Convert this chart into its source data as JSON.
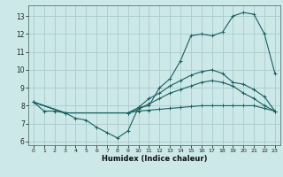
{
  "xlabel": "Humidex (Indice chaleur)",
  "bg_color": "#cce8e8",
  "grid_color": "#aacccc",
  "line_color": "#1a6060",
  "xlim": [
    -0.5,
    23.5
  ],
  "ylim": [
    5.8,
    13.6
  ],
  "xticks": [
    0,
    1,
    2,
    3,
    4,
    5,
    6,
    7,
    8,
    9,
    10,
    11,
    12,
    13,
    14,
    15,
    16,
    17,
    18,
    19,
    20,
    21,
    22,
    23
  ],
  "yticks": [
    6,
    7,
    8,
    9,
    10,
    11,
    12,
    13
  ],
  "series": [
    {
      "x": [
        0,
        1,
        2,
        3,
        4,
        5,
        6,
        7,
        8,
        9,
        10,
        11,
        12,
        13,
        14,
        15,
        16,
        17,
        18,
        19,
        20,
        21,
        22,
        23
      ],
      "y": [
        8.2,
        7.7,
        7.7,
        7.6,
        7.3,
        7.2,
        6.8,
        6.5,
        6.2,
        6.6,
        7.9,
        8.0,
        9.0,
        9.5,
        10.5,
        11.9,
        12.0,
        11.9,
        12.1,
        13.0,
        13.2,
        13.1,
        12.0,
        9.8
      ]
    },
    {
      "x": [
        0,
        3,
        9,
        10,
        11,
        12,
        13,
        14,
        15,
        16,
        17,
        18,
        19,
        20,
        21,
        22,
        23
      ],
      "y": [
        8.2,
        7.6,
        7.6,
        7.9,
        8.4,
        8.7,
        9.1,
        9.4,
        9.7,
        9.9,
        10.0,
        9.8,
        9.3,
        9.2,
        8.9,
        8.5,
        7.7
      ]
    },
    {
      "x": [
        0,
        3,
        9,
        10,
        11,
        12,
        13,
        14,
        15,
        16,
        17,
        18,
        19,
        20,
        21,
        22,
        23
      ],
      "y": [
        8.2,
        7.6,
        7.6,
        7.8,
        8.1,
        8.4,
        8.7,
        8.9,
        9.1,
        9.3,
        9.4,
        9.3,
        9.1,
        8.7,
        8.4,
        8.0,
        7.7
      ]
    },
    {
      "x": [
        0,
        3,
        9,
        10,
        11,
        12,
        13,
        14,
        15,
        16,
        17,
        18,
        19,
        20,
        21,
        22,
        23
      ],
      "y": [
        8.2,
        7.6,
        7.6,
        7.7,
        7.75,
        7.8,
        7.85,
        7.9,
        7.95,
        8.0,
        8.0,
        8.0,
        8.0,
        8.0,
        8.0,
        7.85,
        7.7
      ]
    }
  ]
}
